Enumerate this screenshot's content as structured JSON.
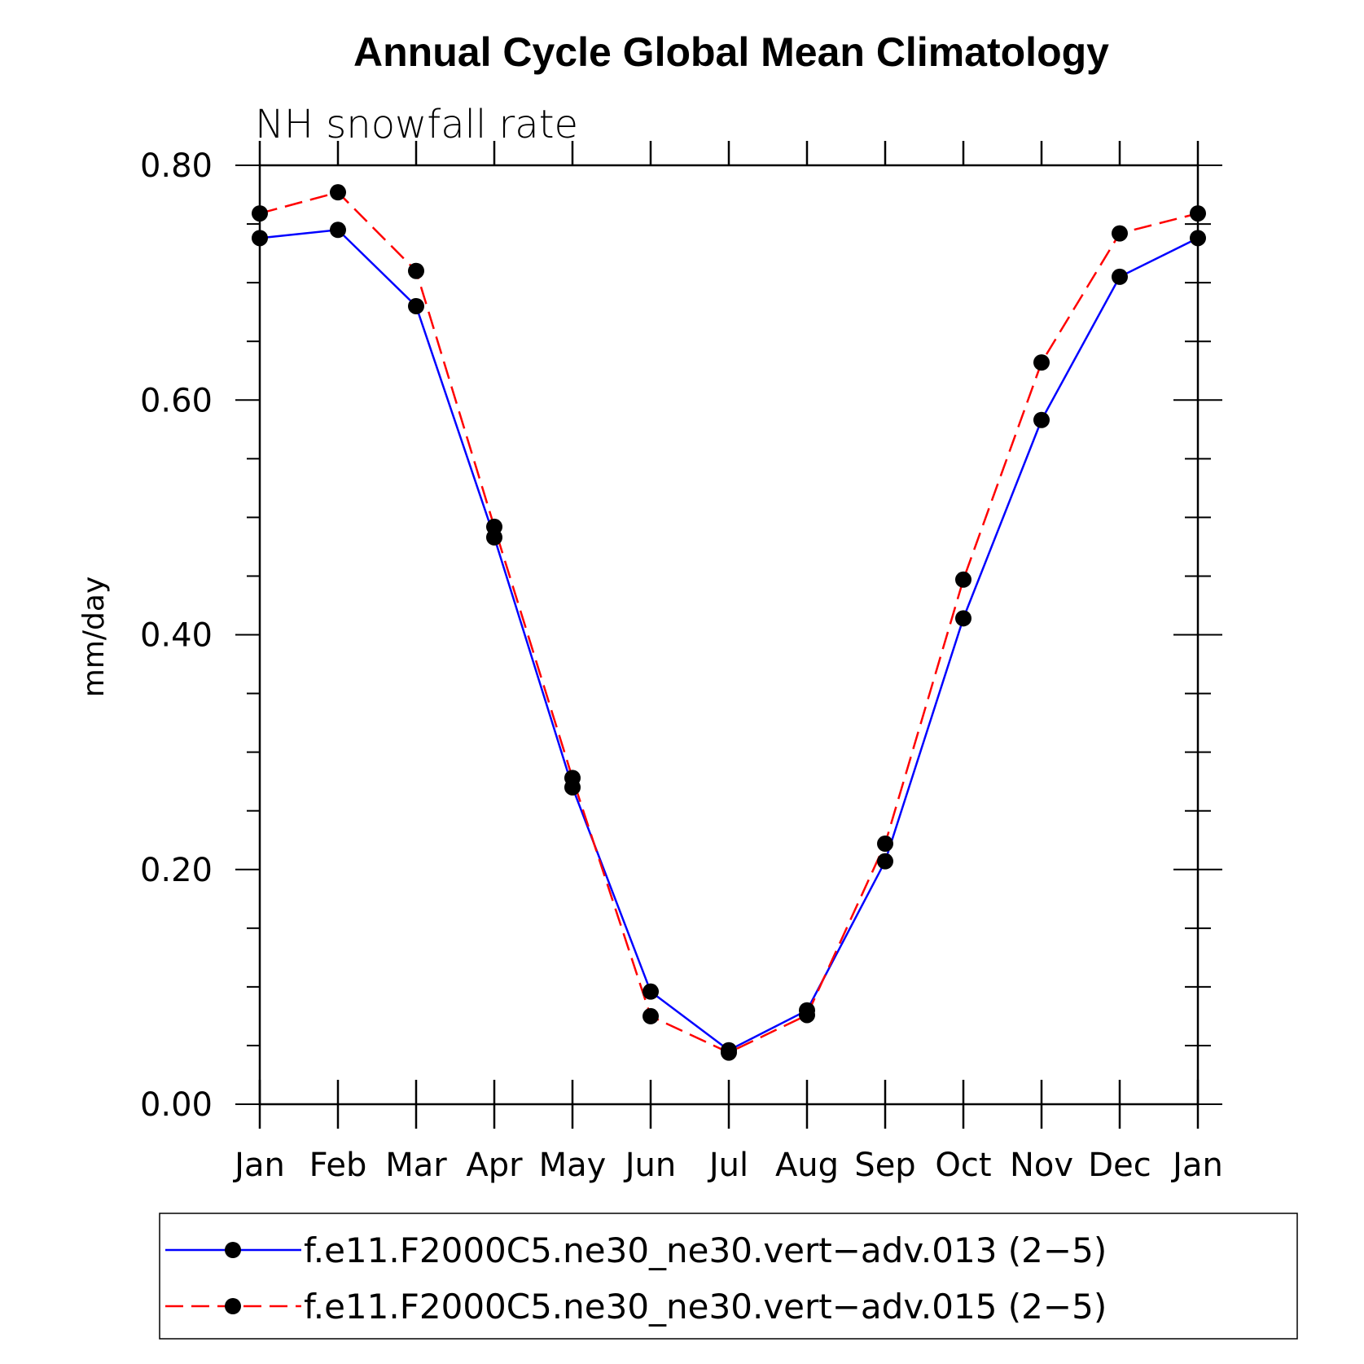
{
  "chart_data": {
    "type": "line",
    "title": "Annual Cycle Global Mean Climatology",
    "subtitle": "NH snowfall rate",
    "ylabel": "mm/day",
    "xlabel": "",
    "categories": [
      "Jan",
      "Feb",
      "Mar",
      "Apr",
      "May",
      "Jun",
      "Jul",
      "Aug",
      "Sep",
      "Oct",
      "Nov",
      "Dec",
      "Jan"
    ],
    "ylim": [
      0.0,
      0.8
    ],
    "yticks": [
      "0.00",
      "0.20",
      "0.40",
      "0.60",
      "0.80"
    ],
    "grid": false,
    "legend_position": "bottom",
    "series": [
      {
        "name": "f.e11.F2000C5.ne30_ne30.vert−adv.013 (2−5)",
        "color": "#0000ff",
        "line_style": "solid",
        "marker": "filled-circle",
        "values": [
          0.738,
          0.745,
          0.68,
          0.483,
          0.27,
          0.096,
          0.046,
          0.08,
          0.207,
          0.414,
          0.583,
          0.705,
          0.738
        ]
      },
      {
        "name": "f.e11.F2000C5.ne30_ne30.vert−adv.015 (2−5)",
        "color": "#ff0000",
        "line_style": "dashed",
        "marker": "filled-circle",
        "values": [
          0.759,
          0.777,
          0.71,
          0.492,
          0.278,
          0.075,
          0.044,
          0.076,
          0.222,
          0.447,
          0.632,
          0.742,
          0.759
        ]
      }
    ]
  }
}
